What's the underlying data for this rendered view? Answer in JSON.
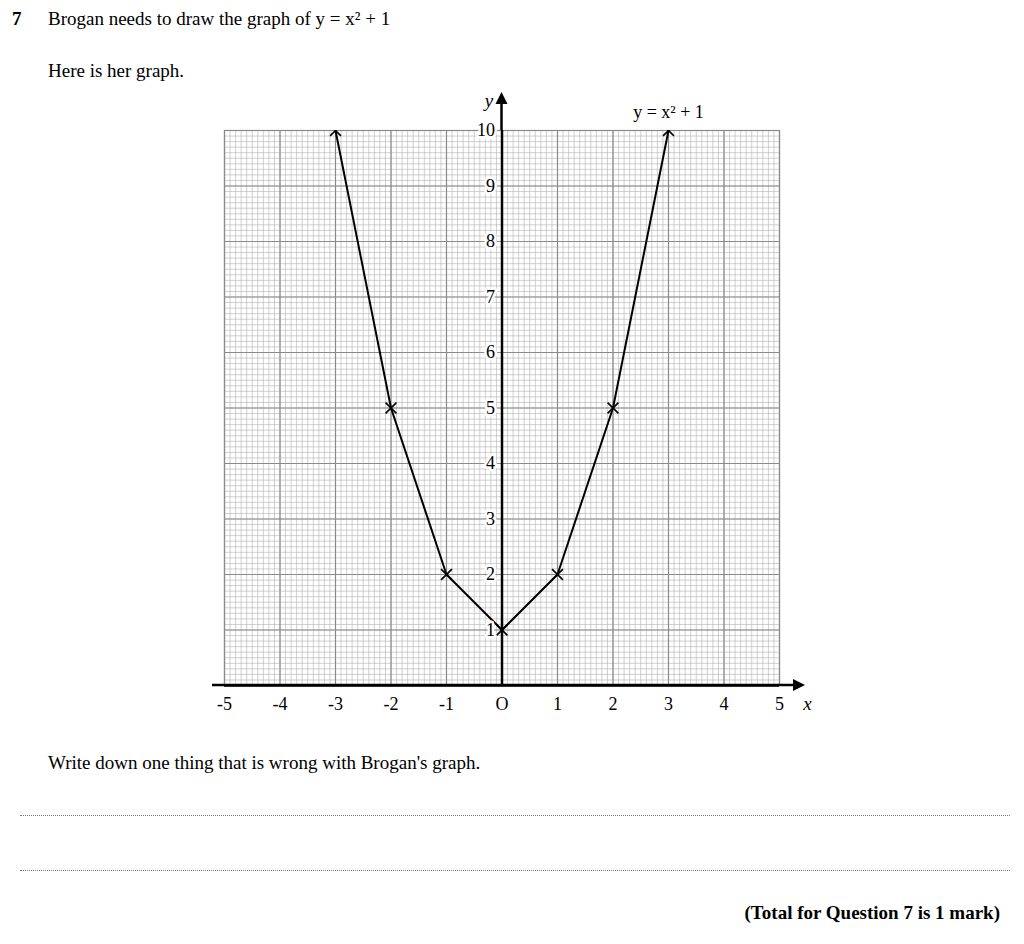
{
  "question": {
    "number": "7",
    "intro": "Brogan needs to draw the graph of y = x² + 1",
    "lead": "Here is her graph.",
    "prompt": "Write down one thing that is wrong with Brogan's graph.",
    "total": "(Total for Question 7 is 1 mark)"
  },
  "chart_data": {
    "type": "line",
    "x": [
      -3,
      -2,
      -1,
      0,
      1,
      2,
      3
    ],
    "series": [
      {
        "name": "y = x² + 1",
        "color": "#000000",
        "marker": "x",
        "values": [
          10,
          5,
          2,
          1,
          2,
          5,
          10
        ]
      }
    ],
    "x_label": "x",
    "y_label": "y",
    "xlim": [
      -5,
      5
    ],
    "ylim": [
      0,
      10
    ],
    "xticks": [
      -5,
      -4,
      -3,
      -2,
      -1,
      {
        "value": 0,
        "label": "O"
      },
      1,
      2,
      3,
      4,
      5
    ],
    "yticks": [
      1,
      2,
      3,
      4,
      5,
      6,
      7,
      8,
      9,
      10
    ],
    "grid": true
  }
}
